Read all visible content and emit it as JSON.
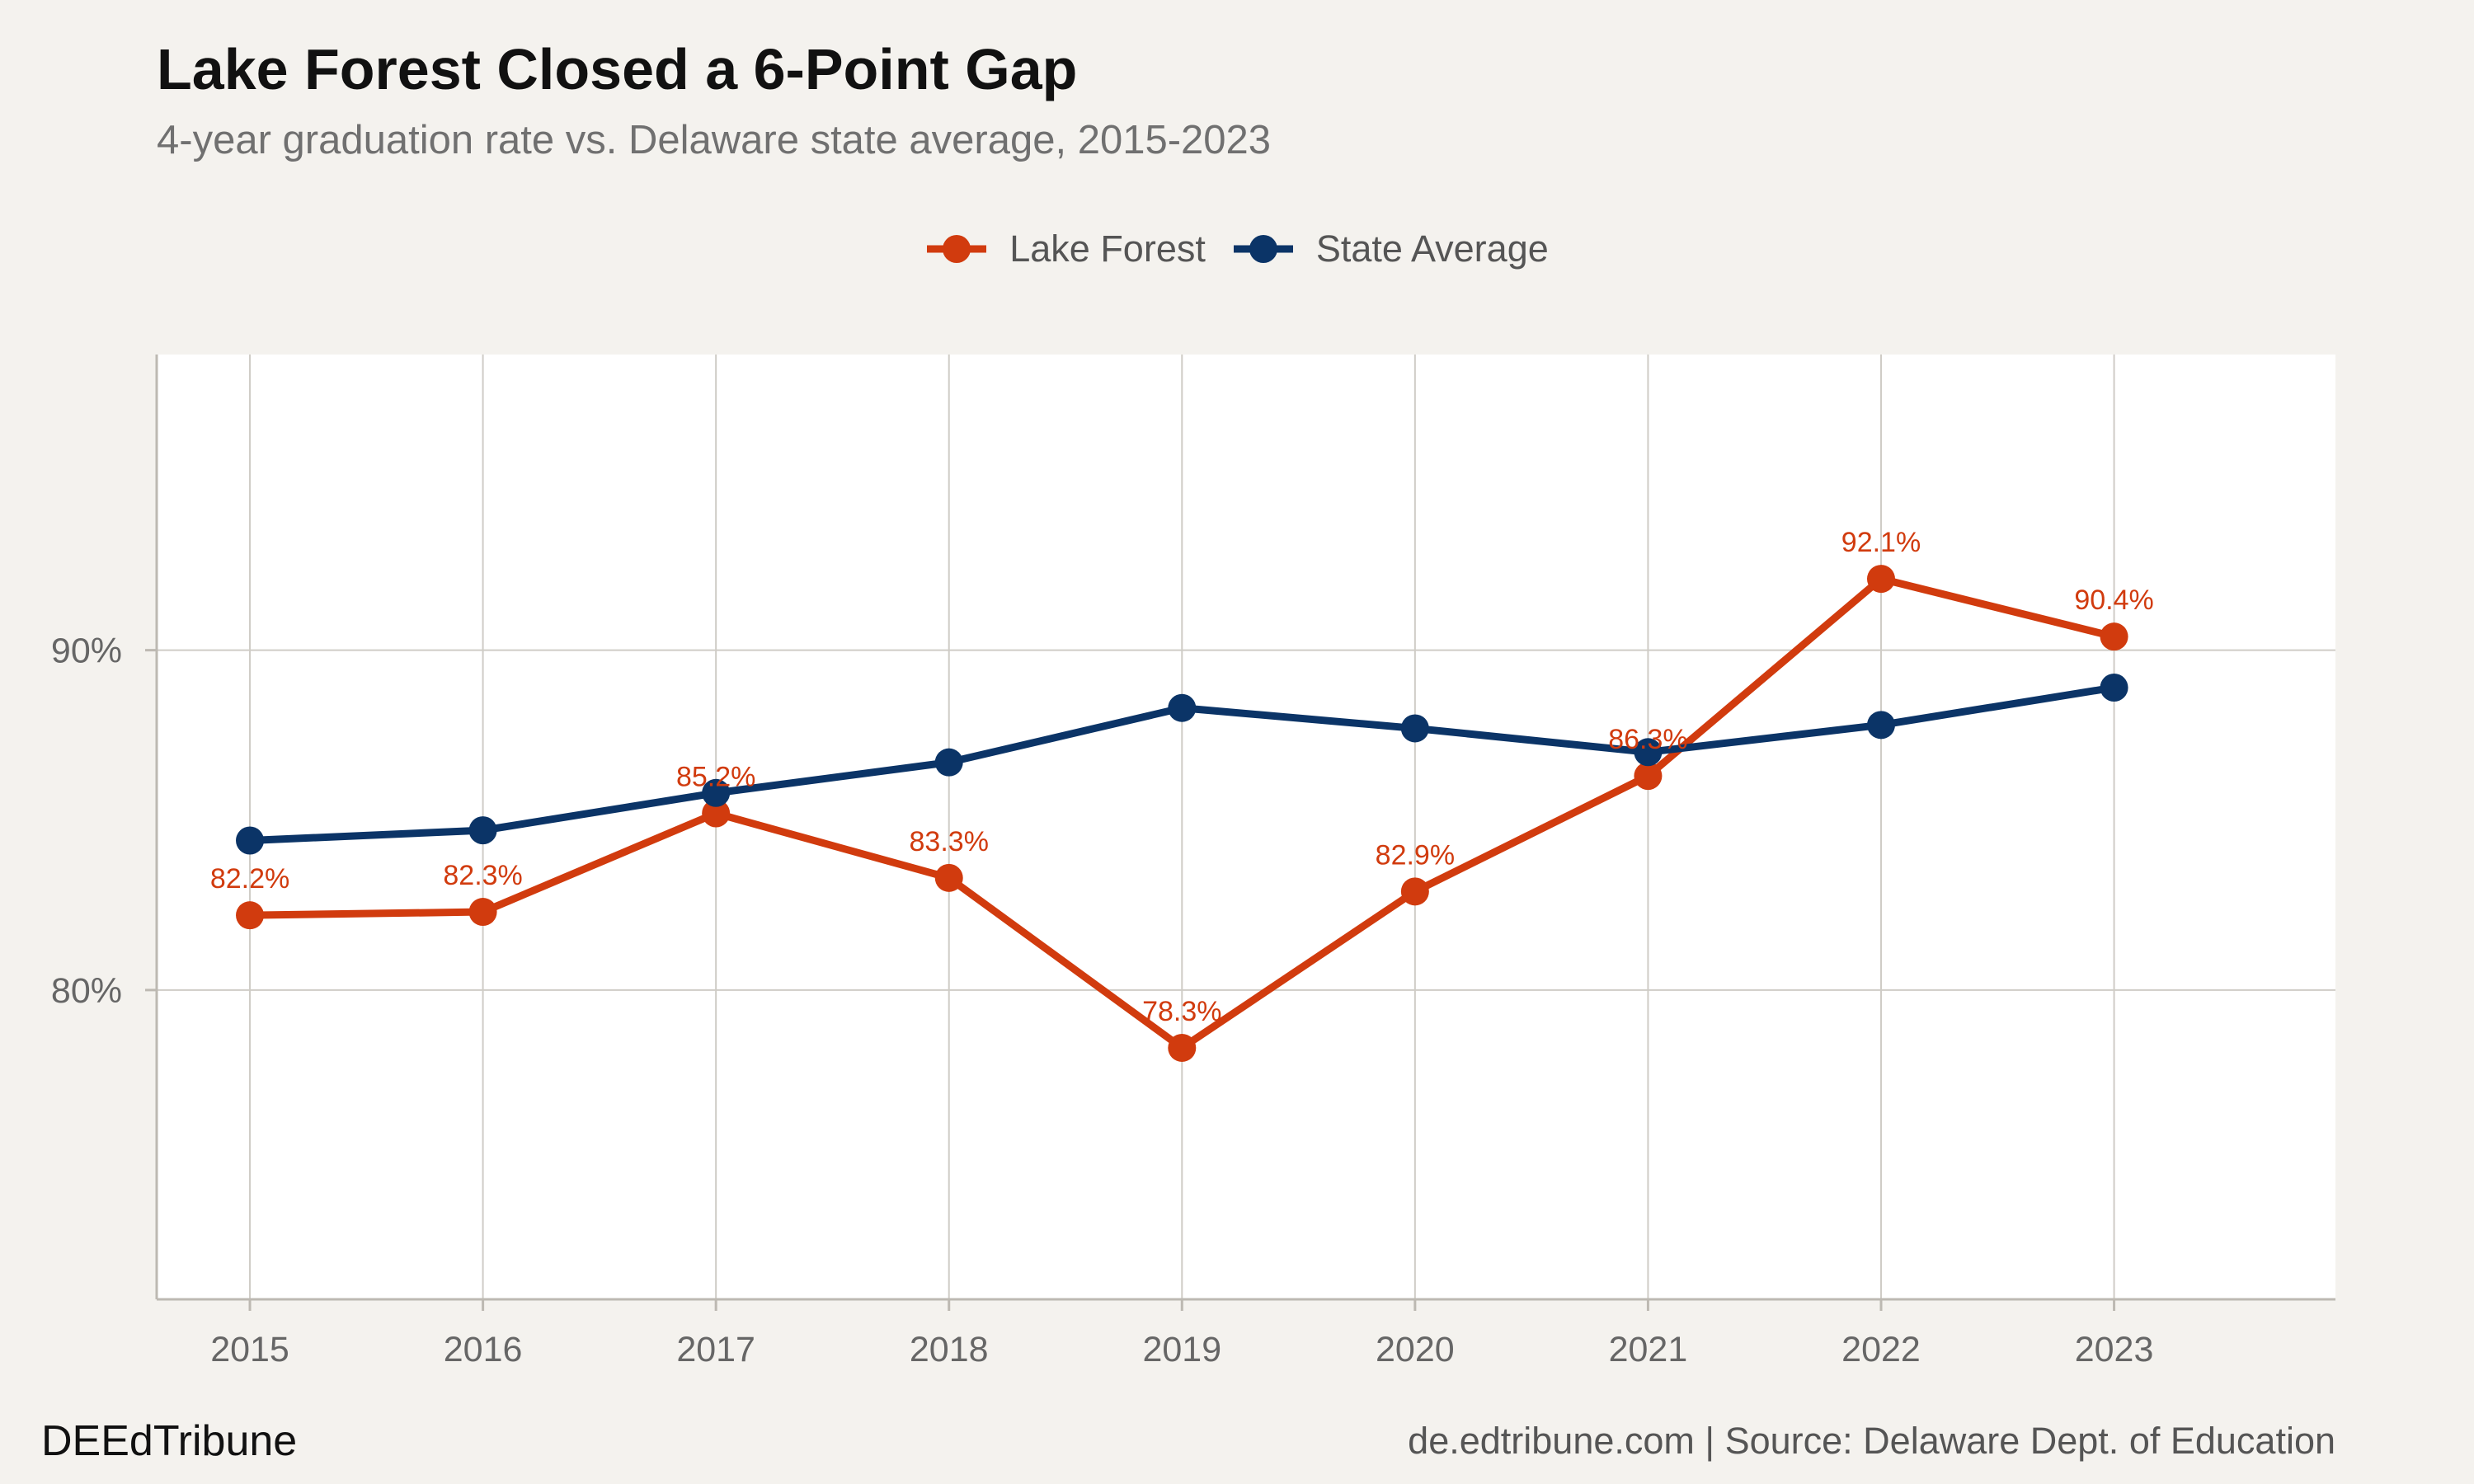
{
  "title": "Lake Forest Closed a 6-Point Gap",
  "subtitle": "4-year graduation rate vs. Delaware state average, 2015-2023",
  "brand": "DEEdTribune",
  "source": "de.edtribune.com | Source: Delaware Dept. of Education",
  "colors": {
    "lake_forest": "#d13b0e",
    "state_average": "#0b3467",
    "background": "#f4f2ee",
    "panel": "#ffffff",
    "grid": "#cfccc6"
  },
  "chart_data": {
    "type": "line",
    "title": "Lake Forest Closed a 6-Point Gap",
    "subtitle": "4-year graduation rate vs. Delaware state average, 2015-2023",
    "xlabel": "",
    "ylabel": "",
    "x": [
      2015,
      2016,
      2017,
      2018,
      2019,
      2020,
      2021,
      2022,
      2023
    ],
    "x_tick_labels": [
      "2015",
      "2016",
      "2017",
      "2018",
      "2019",
      "2020",
      "2021",
      "2022",
      "2023"
    ],
    "xlim": [
      2014.6,
      2023.95
    ],
    "ylim": [
      70.9,
      98.7
    ],
    "y_ticks": [
      80,
      90
    ],
    "y_tick_labels": [
      "80%",
      "90%"
    ],
    "grid": true,
    "legend": "top-center",
    "series": [
      {
        "name": "Lake Forest",
        "color": "#d13b0e",
        "values": [
          82.2,
          82.3,
          85.2,
          83.3,
          78.3,
          82.9,
          86.3,
          92.1,
          90.4
        ],
        "labels": [
          "82.2%",
          "82.3%",
          "85.2%",
          "83.3%",
          "78.3%",
          "82.9%",
          "86.3%",
          "92.1%",
          "90.4%"
        ]
      },
      {
        "name": "State Average",
        "color": "#0b3467",
        "values": [
          84.4,
          84.7,
          85.8,
          86.7,
          88.3,
          87.7,
          87.0,
          87.8,
          88.9
        ]
      }
    ]
  }
}
